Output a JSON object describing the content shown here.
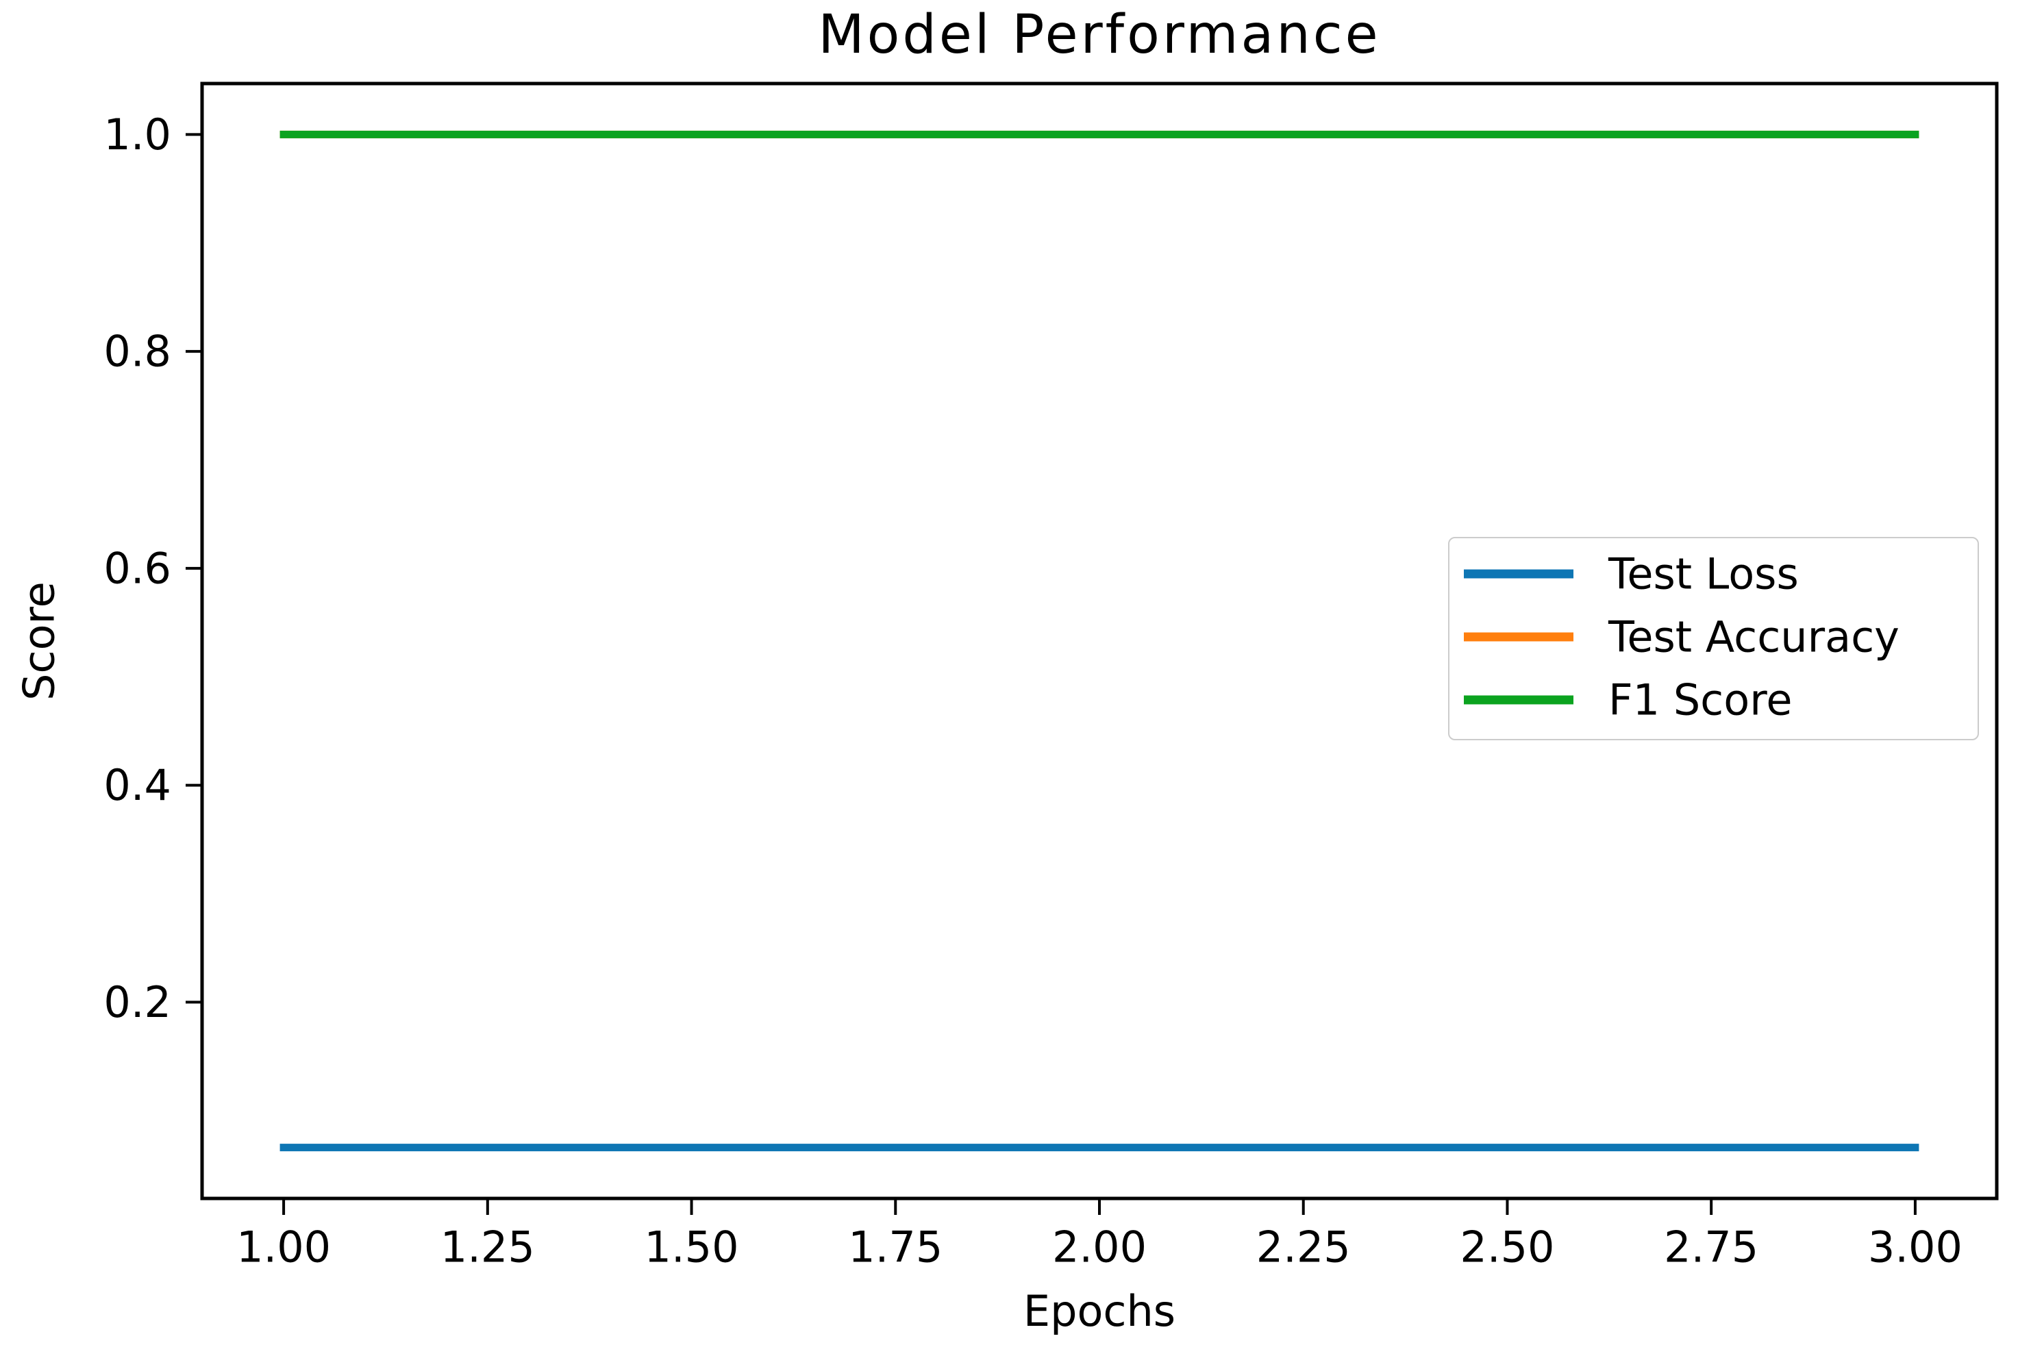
{
  "chart_data": {
    "type": "line",
    "title": "Model Performance",
    "xlabel": "Epochs",
    "ylabel": "Score",
    "x": [
      1,
      2,
      3
    ],
    "series": [
      {
        "name": "Test Loss",
        "color": "#0e76b4",
        "values": [
          0.066,
          0.066,
          0.066
        ]
      },
      {
        "name": "Test Accuracy",
        "color": "#ff7f0e",
        "values": [
          1.0,
          1.0,
          1.0
        ]
      },
      {
        "name": "F1 Score",
        "color": "#0ba31f",
        "values": [
          1.0,
          1.0,
          1.0
        ]
      }
    ],
    "xlim": [
      0.9,
      3.1
    ],
    "ylim": [
      0.019,
      1.047
    ],
    "xticks": {
      "values": [
        1.0,
        1.25,
        1.5,
        1.75,
        2.0,
        2.25,
        2.5,
        2.75,
        3.0
      ],
      "labels": [
        "1.00",
        "1.25",
        "1.50",
        "1.75",
        "2.00",
        "2.25",
        "2.50",
        "2.75",
        "3.00"
      ]
    },
    "yticks": {
      "values": [
        0.2,
        0.4,
        0.6,
        0.8,
        1.0
      ],
      "labels": [
        "0.2",
        "0.4",
        "0.6",
        "0.8",
        "1.0"
      ]
    },
    "grid": false,
    "legend": {
      "location": "center right",
      "entries": [
        "Test Loss",
        "Test Accuracy",
        "F1 Score"
      ]
    },
    "axis_color": "#000000",
    "note": "Test Accuracy line (orange) is fully overlapped by the F1 Score line (green) at y = 1.0"
  }
}
